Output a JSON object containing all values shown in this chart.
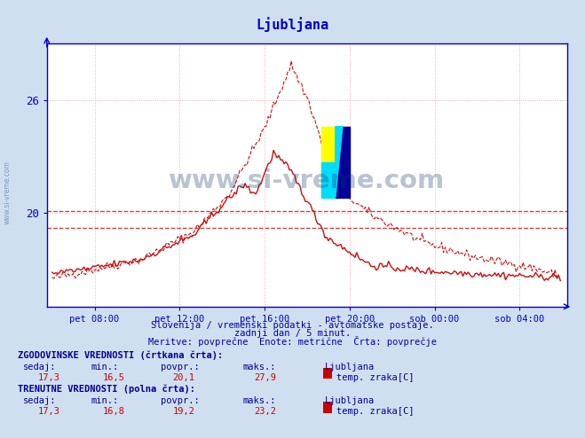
{
  "title": "Ljubljana",
  "title_color": "#0000cc",
  "background_color": "#d0dff0",
  "plot_bg_color": "#ffffff",
  "line_color": "#cc0000",
  "grid_color": "#ffaaaa",
  "axis_color": "#0000cc",
  "yticks": [
    20,
    26
  ],
  "ylabel_color": "#0000cc",
  "xlabel_labels": [
    "pet 08:00",
    "pet 12:00",
    "pet 16:00",
    "pet 20:00",
    "sob 00:00",
    "sob 04:00"
  ],
  "xlabel_color": "#0000cc",
  "watermark_text": "www.si-vreme.com",
  "watermark_color": "#1a3a6b",
  "watermark_alpha": 0.3,
  "subtitle_lines": [
    "Slovenija / vremenski podatki - avtomatske postaje.",
    "zadnji dan / 5 minut.",
    "Meritve: povprečne  Enote: metrične  Črta: povprečje"
  ],
  "subtitle_color": "#0000aa",
  "stats_text_color": "#cc0000",
  "stats_label_color": "#000099",
  "hist_label": "ZGODOVINSKE VREDNOSTI (črtkana črta):",
  "hist_sedaj": "17,3",
  "hist_min": "16,5",
  "hist_povpr": "20,1",
  "hist_maks": "27,9",
  "cur_label": "TRENUTNE VREDNOSTI (polna črta):",
  "cur_sedaj": "17,3",
  "cur_min": "16,8",
  "cur_povpr": "19,2",
  "cur_maks": "23,2",
  "legend_label": "Ljubljana",
  "series_label": "temp. zraka[C]",
  "legend_color": "#cc0000",
  "ylim_min": 15.0,
  "ylim_max": 29.0,
  "avg_historical": 20.1,
  "avg_current": 19.2,
  "n_points": 288,
  "tick_indices": [
    24,
    72,
    120,
    168,
    216,
    264
  ]
}
